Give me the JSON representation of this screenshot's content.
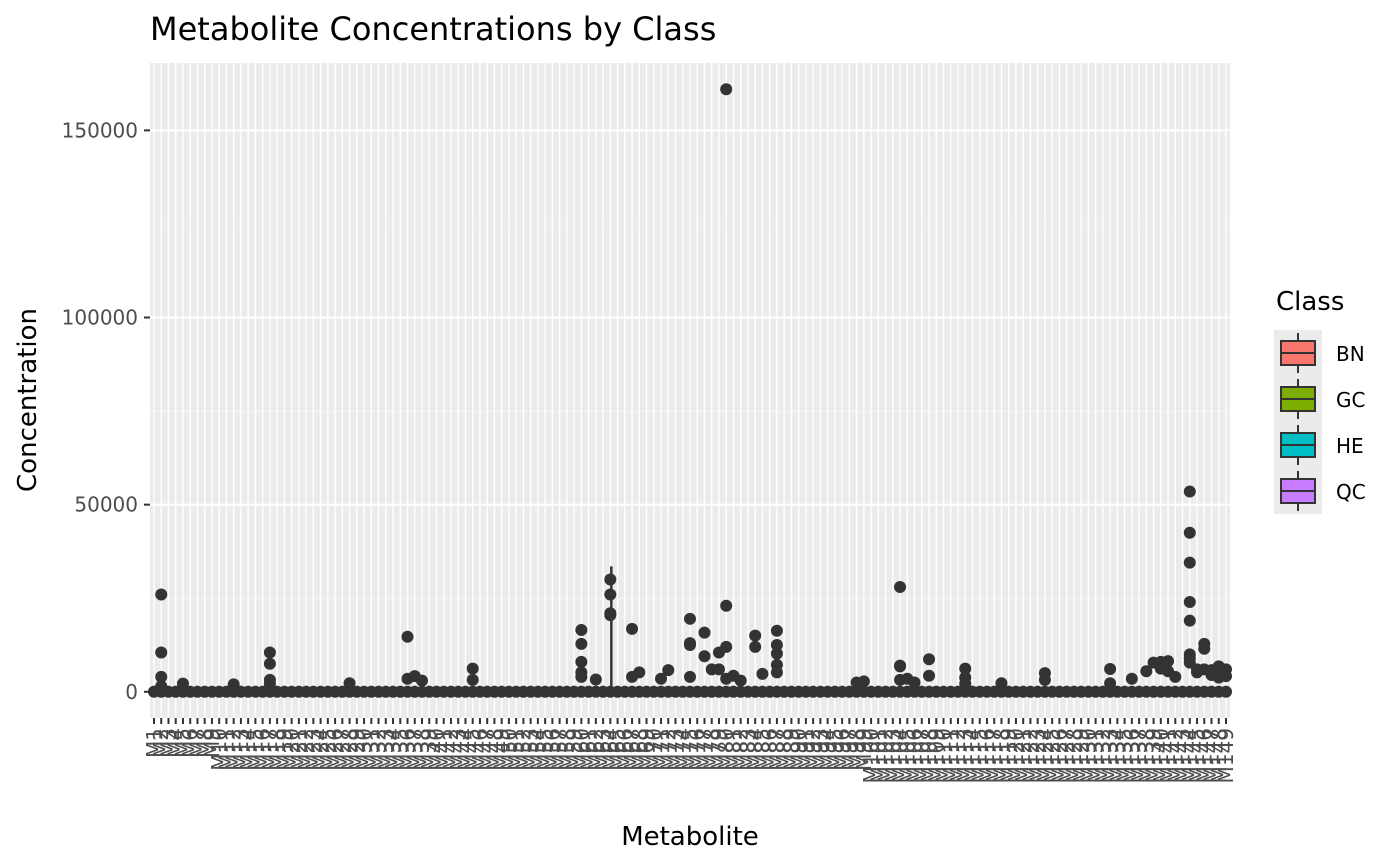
{
  "chart_data": {
    "type": "box",
    "title": "Metabolite Concentrations by Class",
    "xlabel": "Metabolite",
    "ylabel": "Concentration",
    "ylim": [
      -7000,
      168000
    ],
    "yticks": [
      0,
      50000,
      100000,
      150000
    ],
    "ytick_labels": [
      "0",
      "50000",
      "100000",
      "150000"
    ],
    "grid": true,
    "legend": {
      "title": "Class",
      "position": "right"
    },
    "classes": [
      {
        "name": "BN",
        "color": "#F8766D"
      },
      {
        "name": "GC",
        "color": "#7CAE00"
      },
      {
        "name": "HE",
        "color": "#00BFC4"
      },
      {
        "name": "QC",
        "color": "#C77CFF"
      }
    ],
    "categories": [
      "M1",
      "M2",
      "M3",
      "M4",
      "M5",
      "M6",
      "M7",
      "M8",
      "M9",
      "M10",
      "M11",
      "M12",
      "M13",
      "M14",
      "M15",
      "M16",
      "M17",
      "M18",
      "M19",
      "M20",
      "M21",
      "M22",
      "M23",
      "M24",
      "M25",
      "M26",
      "M27",
      "M28",
      "M29",
      "M30",
      "M31",
      "M32",
      "M33",
      "M34",
      "M35",
      "M36",
      "M37",
      "M38",
      "M39",
      "M40",
      "M41",
      "M42",
      "M43",
      "M44",
      "M45",
      "M46",
      "M47",
      "M48",
      "M49",
      "M50",
      "M51",
      "M52",
      "M53",
      "M54",
      "M55",
      "M56",
      "M57",
      "M58",
      "M59",
      "M60",
      "M61",
      "M62",
      "M63",
      "M64",
      "M65",
      "M66",
      "M67",
      "M68",
      "M69",
      "M70",
      "M71",
      "M72",
      "M73",
      "M74",
      "M75",
      "M76",
      "M77",
      "M78",
      "M79",
      "M80",
      "M81",
      "M82",
      "M83",
      "M84",
      "M85",
      "M86",
      "M87",
      "M88",
      "M89",
      "M90",
      "M91",
      "M92",
      "M93",
      "M94",
      "M95",
      "M96",
      "M97",
      "M98",
      "M99",
      "M100",
      "M101",
      "M102",
      "M103",
      "M104",
      "M105",
      "M106",
      "M107",
      "M108",
      "M109",
      "M110",
      "M111",
      "M112",
      "M113",
      "M114",
      "M115",
      "M116",
      "M117",
      "M118",
      "M119",
      "M120",
      "M121",
      "M122",
      "M123",
      "M124",
      "M125",
      "M126",
      "M127",
      "M128",
      "M129",
      "M130",
      "M131",
      "M132",
      "M133",
      "M134",
      "M135",
      "M136",
      "M137",
      "M138",
      "M139",
      "M140",
      "M141",
      "M142",
      "M143",
      "M144",
      "M145",
      "M146",
      "M147",
      "M148",
      "M149"
    ],
    "outliers": [
      {
        "x": "M2",
        "y": 26000
      },
      {
        "x": "M2",
        "y": 10500
      },
      {
        "x": "M2",
        "y": 4000
      },
      {
        "x": "M2",
        "y": 1500
      },
      {
        "x": "M5",
        "y": 2200
      },
      {
        "x": "M12",
        "y": 2000
      },
      {
        "x": "M17",
        "y": 10500
      },
      {
        "x": "M17",
        "y": 7500
      },
      {
        "x": "M17",
        "y": 3200
      },
      {
        "x": "M17",
        "y": 2200
      },
      {
        "x": "M28",
        "y": 2300
      },
      {
        "x": "M36",
        "y": 14700
      },
      {
        "x": "M36",
        "y": 3500
      },
      {
        "x": "M37",
        "y": 4200
      },
      {
        "x": "M38",
        "y": 3000
      },
      {
        "x": "M45",
        "y": 6200
      },
      {
        "x": "M45",
        "y": 3200
      },
      {
        "x": "M60",
        "y": 12800
      },
      {
        "x": "M60",
        "y": 16500
      },
      {
        "x": "M60",
        "y": 8000
      },
      {
        "x": "M60",
        "y": 5200
      },
      {
        "x": "M60",
        "y": 4000
      },
      {
        "x": "M62",
        "y": 3300
      },
      {
        "x": "M64",
        "y": 30000
      },
      {
        "x": "M64",
        "y": 26000
      },
      {
        "x": "M64",
        "y": 21000
      },
      {
        "x": "M64",
        "y": 20500
      },
      {
        "x": "M67",
        "y": 16800
      },
      {
        "x": "M67",
        "y": 4000
      },
      {
        "x": "M68",
        "y": 5200
      },
      {
        "x": "M71",
        "y": 3500
      },
      {
        "x": "M72",
        "y": 5800
      },
      {
        "x": "M75",
        "y": 19500
      },
      {
        "x": "M75",
        "y": 12500
      },
      {
        "x": "M75",
        "y": 13000
      },
      {
        "x": "M75",
        "y": 4000
      },
      {
        "x": "M77",
        "y": 15800
      },
      {
        "x": "M77",
        "y": 9500
      },
      {
        "x": "M78",
        "y": 6000
      },
      {
        "x": "M79",
        "y": 10500
      },
      {
        "x": "M79",
        "y": 6000
      },
      {
        "x": "M80",
        "y": 161000
      },
      {
        "x": "M80",
        "y": 23000
      },
      {
        "x": "M80",
        "y": 12000
      },
      {
        "x": "M80",
        "y": 3500
      },
      {
        "x": "M81",
        "y": 4300
      },
      {
        "x": "M82",
        "y": 3000
      },
      {
        "x": "M84",
        "y": 15000
      },
      {
        "x": "M84",
        "y": 12000
      },
      {
        "x": "M85",
        "y": 4800
      },
      {
        "x": "M87",
        "y": 16300
      },
      {
        "x": "M87",
        "y": 12500
      },
      {
        "x": "M87",
        "y": 10200
      },
      {
        "x": "M87",
        "y": 7200
      },
      {
        "x": "M87",
        "y": 5200
      },
      {
        "x": "M98",
        "y": 2500
      },
      {
        "x": "M99",
        "y": 2800
      },
      {
        "x": "M104",
        "y": 28000
      },
      {
        "x": "M104",
        "y": 7000
      },
      {
        "x": "M104",
        "y": 6800
      },
      {
        "x": "M104",
        "y": 3200
      },
      {
        "x": "M105",
        "y": 3500
      },
      {
        "x": "M106",
        "y": 2500
      },
      {
        "x": "M108",
        "y": 8700
      },
      {
        "x": "M108",
        "y": 4300
      },
      {
        "x": "M113",
        "y": 6200
      },
      {
        "x": "M113",
        "y": 3800
      },
      {
        "x": "M113",
        "y": 2200
      },
      {
        "x": "M118",
        "y": 2300
      },
      {
        "x": "M124",
        "y": 5000
      },
      {
        "x": "M124",
        "y": 3200
      },
      {
        "x": "M133",
        "y": 6100
      },
      {
        "x": "M133",
        "y": 2300
      },
      {
        "x": "M136",
        "y": 3500
      },
      {
        "x": "M138",
        "y": 5500
      },
      {
        "x": "M139",
        "y": 7800
      },
      {
        "x": "M140",
        "y": 8000
      },
      {
        "x": "M140",
        "y": 6200
      },
      {
        "x": "M141",
        "y": 8200
      },
      {
        "x": "M141",
        "y": 5500
      },
      {
        "x": "M142",
        "y": 4000
      },
      {
        "x": "M144",
        "y": 53500
      },
      {
        "x": "M144",
        "y": 42500
      },
      {
        "x": "M144",
        "y": 34500
      },
      {
        "x": "M144",
        "y": 24000
      },
      {
        "x": "M144",
        "y": 19000
      },
      {
        "x": "M144",
        "y": 10000
      },
      {
        "x": "M144",
        "y": 9000
      },
      {
        "x": "M144",
        "y": 7800
      },
      {
        "x": "M145",
        "y": 6000
      },
      {
        "x": "M145",
        "y": 5200
      },
      {
        "x": "M146",
        "y": 12800
      },
      {
        "x": "M146",
        "y": 11500
      },
      {
        "x": "M146",
        "y": 6000
      },
      {
        "x": "M147",
        "y": 5800
      },
      {
        "x": "M147",
        "y": 4500
      },
      {
        "x": "M148",
        "y": 6800
      },
      {
        "x": "M148",
        "y": 5000
      },
      {
        "x": "M148",
        "y": 3800
      },
      {
        "x": "M149",
        "y": 6000
      },
      {
        "x": "M149",
        "y": 4200
      }
    ]
  }
}
